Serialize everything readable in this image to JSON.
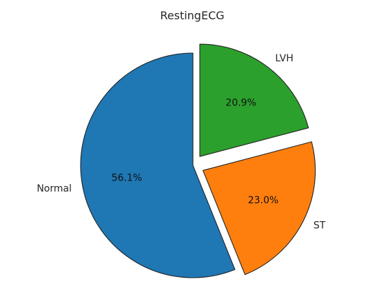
{
  "chart_data": {
    "type": "pie",
    "title": "RestingECG",
    "categories": [
      "Normal",
      "ST",
      "LVH"
    ],
    "values": [
      56.1,
      23.0,
      20.9
    ],
    "percent_labels": [
      "56.1%",
      "23.0%",
      "20.9%"
    ],
    "colors": [
      "#1f77b4",
      "#ff7f0e",
      "#2ca02c"
    ],
    "explode": [
      0,
      0.1,
      0.1
    ],
    "start_angle_deg": 90,
    "direction": "counterclockwise",
    "legend": "none"
  }
}
